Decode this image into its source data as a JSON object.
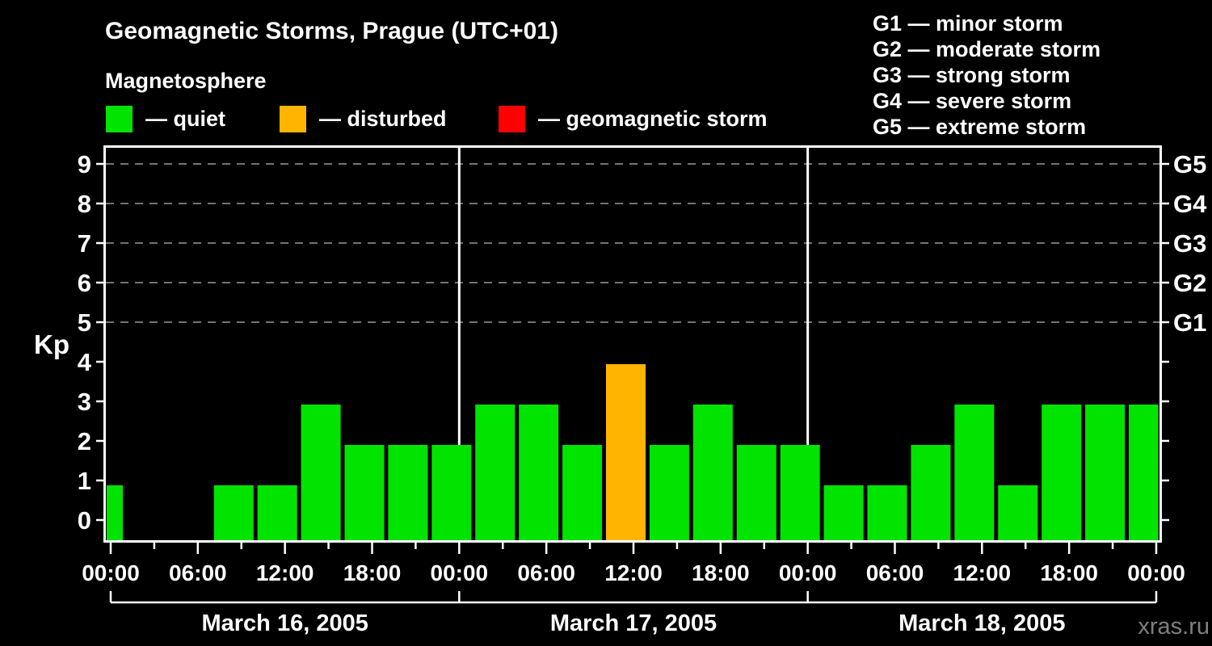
{
  "header": {
    "title": "Geomagnetic Storms, Prague (UTC+01)",
    "subtitle": "Magnetosphere"
  },
  "legend": {
    "items": [
      {
        "name": "quiet",
        "label": "— quiet",
        "color": "#00e400"
      },
      {
        "name": "disturbed",
        "label": "— disturbed",
        "color": "#ffb400"
      },
      {
        "name": "geomagnetic-storm",
        "label": "— geomagnetic storm",
        "color": "#ff0000"
      }
    ]
  },
  "storm_scale_legend": {
    "lines": [
      "G1 — minor storm",
      "G2 — moderate storm",
      "G3 — strong storm",
      "G4 — severe storm",
      "G5 — extreme storm"
    ]
  },
  "watermark": "xras.ru",
  "chart_data": {
    "type": "bar",
    "title": "Geomagnetic Storms, Prague (UTC+01)",
    "ylabel": "Kp",
    "ylim": [
      0,
      9
    ],
    "yticks": [
      0,
      1,
      2,
      3,
      4,
      5,
      6,
      7,
      8,
      9
    ],
    "grid_levels": [
      5,
      6,
      7,
      8,
      9
    ],
    "grid_style": "dashed",
    "right_axis_labels": [
      {
        "label": "G1",
        "level": 5
      },
      {
        "label": "G2",
        "level": 6
      },
      {
        "label": "G3",
        "level": 7
      },
      {
        "label": "G4",
        "level": 8
      },
      {
        "label": "G5",
        "level": 9
      }
    ],
    "x_tick_interval_hours": 3,
    "x_label_interval_hours": 6,
    "time_labels_cycle": [
      "00:00",
      "06:00",
      "12:00",
      "18:00"
    ],
    "slot_start_times": [
      "00:00",
      "03:00",
      "06:00",
      "09:00",
      "12:00",
      "15:00",
      "18:00",
      "21:00"
    ],
    "days": [
      {
        "date": "March 16, 2005",
        "kp": [
          1,
          null,
          null,
          1,
          1,
          3,
          2,
          2
        ]
      },
      {
        "date": "March 17, 2005",
        "kp": [
          2,
          3,
          3,
          2,
          4,
          2,
          3,
          2
        ]
      },
      {
        "date": "March 18, 2005",
        "kp": [
          2,
          1,
          1,
          2,
          3,
          1,
          3,
          3
        ]
      }
    ],
    "trailing_bar_kp": 3,
    "leading_bar_clipped": true,
    "trailing_bar_clipped": true,
    "color_rules": {
      "quiet_max_kp": 3,
      "disturbed_kp": 4,
      "storm_min_kp": 5
    },
    "colors": {
      "quiet": "#00e400",
      "disturbed": "#ffb400",
      "storm": "#ff0000",
      "grid": "#999999",
      "axis": "#ffffff",
      "background": "#000000",
      "watermark": "#7f7f7f"
    }
  }
}
